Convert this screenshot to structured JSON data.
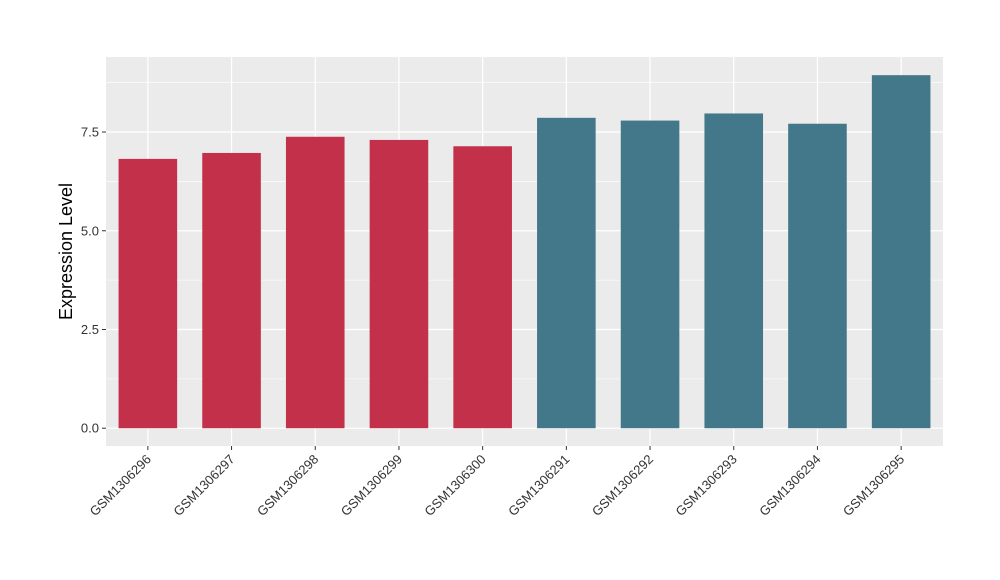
{
  "chart_data": {
    "type": "bar",
    "categories": [
      "GSM1306296",
      "GSM1306297",
      "GSM1306298",
      "GSM1306299",
      "GSM1306300",
      "GSM1306291",
      "GSM1306292",
      "GSM1306293",
      "GSM1306294",
      "GSM1306295"
    ],
    "values": [
      6.82,
      6.97,
      7.38,
      7.3,
      7.14,
      7.86,
      7.79,
      7.97,
      7.71,
      8.94
    ],
    "bar_colors": [
      "#c3304a",
      "#c3304a",
      "#c3304a",
      "#c3304a",
      "#c3304a",
      "#43788a",
      "#43788a",
      "#43788a",
      "#43788a",
      "#43788a"
    ],
    "ylabel": "Expression Level",
    "xlabel": "",
    "ylim": [
      -0.45,
      9.4
    ],
    "yticks": [
      0,
      2.5,
      5,
      7.5
    ],
    "ytick_labels": [
      "0.0",
      "2.5",
      "5.0",
      "7.5"
    ],
    "grid": true,
    "panel_color": "#ebebeb",
    "grid_color": "#ffffff"
  }
}
